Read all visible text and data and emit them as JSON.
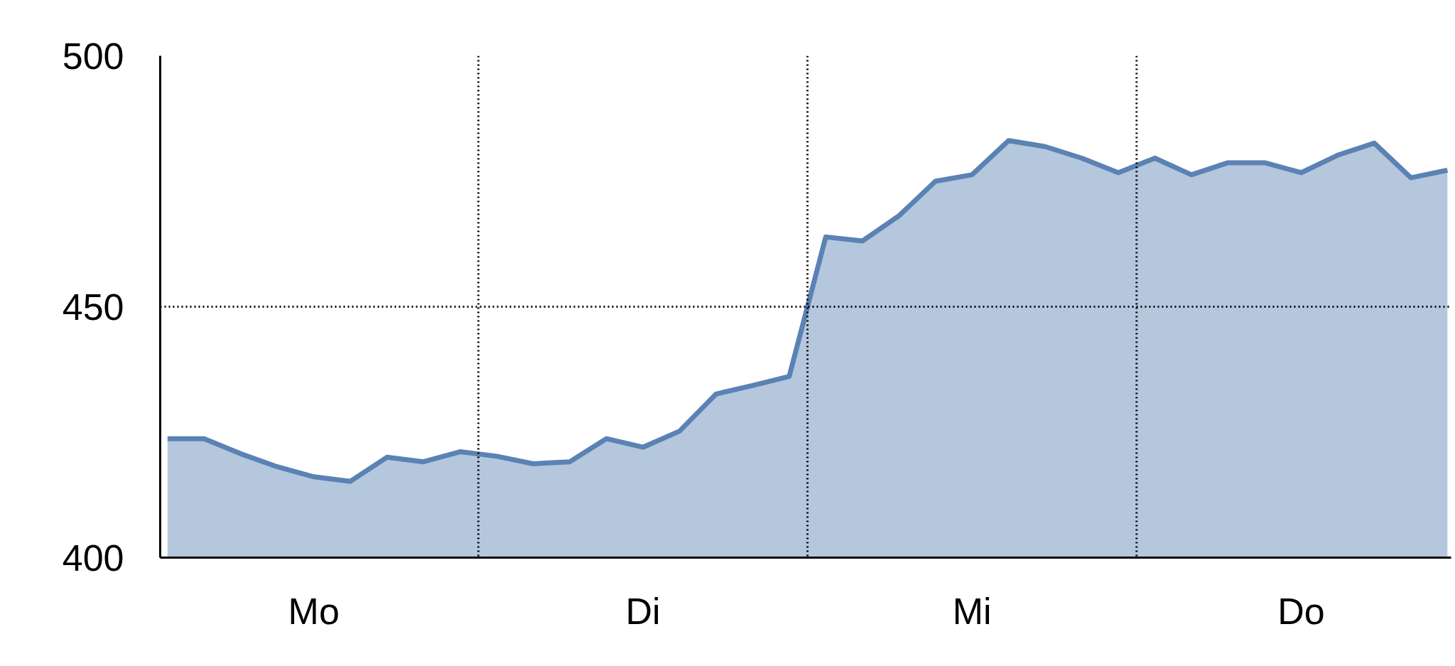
{
  "chart_data": {
    "type": "area",
    "categories": [
      null,
      null,
      null,
      null,
      "Mo",
      null,
      null,
      null,
      null,
      null,
      null,
      null,
      null,
      "Di",
      null,
      null,
      null,
      null,
      null,
      null,
      null,
      null,
      "Mi",
      null,
      null,
      null,
      null,
      null,
      null,
      null,
      null,
      "Do",
      null,
      null,
      null,
      null
    ],
    "series": [
      {
        "color": "#5b82b4",
        "values": [
          423.7,
          423.7,
          420.7,
          418.1,
          416.1,
          415.2,
          420,
          419.1,
          421.1,
          420.2,
          418.7,
          419.1,
          423.7,
          422,
          425.2,
          432.6,
          434.3,
          436.1,
          463.9,
          463.1,
          468.1,
          475,
          476.3,
          483.1,
          481.9,
          479.6,
          476.7,
          479.6,
          476.3,
          478.7,
          478.7,
          476.7,
          480.2,
          482.6,
          475.7,
          477.2
        ]
      }
    ],
    "ylim": [
      400,
      500
    ],
    "yticks": [
      400,
      450,
      500
    ],
    "grid": true
  }
}
